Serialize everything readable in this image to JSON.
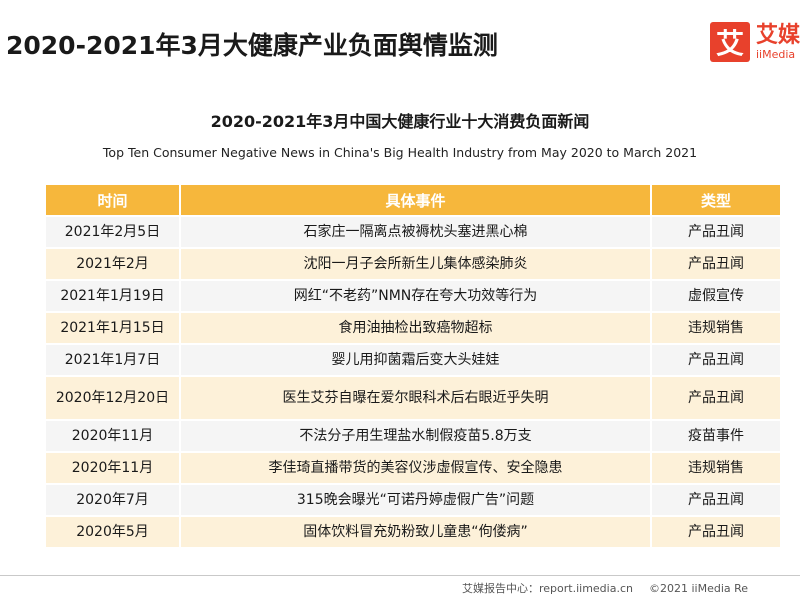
{
  "header": {
    "title": "2020-2021年3月大健康产业负面舆情监测",
    "logo": {
      "mark": "艾",
      "name_cn": "艾媒",
      "name_en": "iiMedia"
    }
  },
  "table_section": {
    "title_cn": "2020-2021年3月中国大健康行业十大消费负面新闻",
    "title_en": "Top Ten Consumer Negative News in China's Big Health Industry from May 2020 to March 2021",
    "columns": [
      "时间",
      "具体事件",
      "类型"
    ],
    "rows": [
      {
        "date": "2021年2月5日",
        "event": "石家庄一隔离点被褥枕头塞进黑心棉",
        "type": "产品丑闻"
      },
      {
        "date": "2021年2月",
        "event": "沈阳一月子会所新生儿集体感染肺炎",
        "type": "产品丑闻"
      },
      {
        "date": "2021年1月19日",
        "event": "网红“不老药”NMN存在夸大功效等行为",
        "type": "虚假宣传"
      },
      {
        "date": "2021年1月15日",
        "event": "食用油抽检出致癌物超标",
        "type": "违规销售"
      },
      {
        "date": "2021年1月7日",
        "event": "婴儿用抑菌霜后变大头娃娃",
        "type": "产品丑闻"
      },
      {
        "date": "2020年12月20日",
        "event": "医生艾芬自曝在爱尔眼科术后右眼近乎失明",
        "type": "产品丑闻"
      },
      {
        "date": "2020年11月",
        "event": "不法分子用生理盐水制假疫苗5.8万支",
        "type": "疫苗事件"
      },
      {
        "date": "2020年11月",
        "event": "李佳琦直播带货的美容仪涉虚假宣传、安全隐患",
        "type": "违规销售"
      },
      {
        "date": "2020年7月",
        "event": "315晚会曝光“可诺丹婷虚假广告”问题",
        "type": "产品丑闻"
      },
      {
        "date": "2020年5月",
        "event": "固体饮料冒充奶粉致儿童患“佝偻病”",
        "type": "产品丑闻"
      }
    ]
  },
  "footer": {
    "source": "艾媒报告中心：report.iimedia.cn",
    "copyright": "©2021  iiMedia Re"
  }
}
